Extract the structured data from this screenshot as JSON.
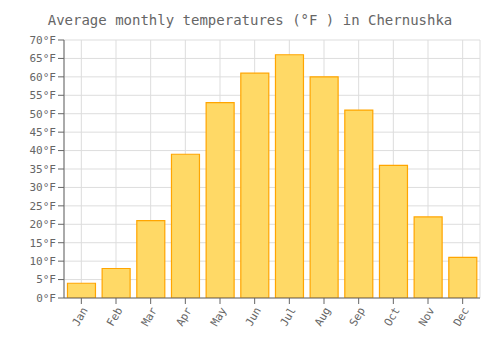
{
  "chart_data": {
    "type": "bar",
    "title": "Average monthly temperatures (°F ) in Chernushka",
    "categories": [
      "Jan",
      "Feb",
      "Mar",
      "Apr",
      "May",
      "Jun",
      "Jul",
      "Aug",
      "Sep",
      "Oct",
      "Nov",
      "Dec"
    ],
    "values": [
      4,
      8,
      21,
      39,
      53,
      61,
      66,
      60,
      51,
      36,
      22,
      11
    ],
    "color": "#FFD966",
    "ylim": [
      0,
      70
    ],
    "yticks": [
      {
        "value": 0,
        "label": "0°F"
      },
      {
        "value": 5,
        "label": "5°F"
      },
      {
        "value": 10,
        "label": "10°F"
      },
      {
        "value": 15,
        "label": "15°F"
      },
      {
        "value": 20,
        "label": "20°F"
      },
      {
        "value": 25,
        "label": "25°F"
      },
      {
        "value": 30,
        "label": "30°F"
      },
      {
        "value": 35,
        "label": "35°F"
      },
      {
        "value": 40,
        "label": "40°F"
      },
      {
        "value": 45,
        "label": "45°F"
      },
      {
        "value": 50,
        "label": "50°F"
      },
      {
        "value": 55,
        "label": "55°F"
      },
      {
        "value": 60,
        "label": "60°F"
      },
      {
        "value": 65,
        "label": "65°F"
      },
      {
        "value": 70,
        "label": "70°F"
      }
    ],
    "grid": true
  }
}
